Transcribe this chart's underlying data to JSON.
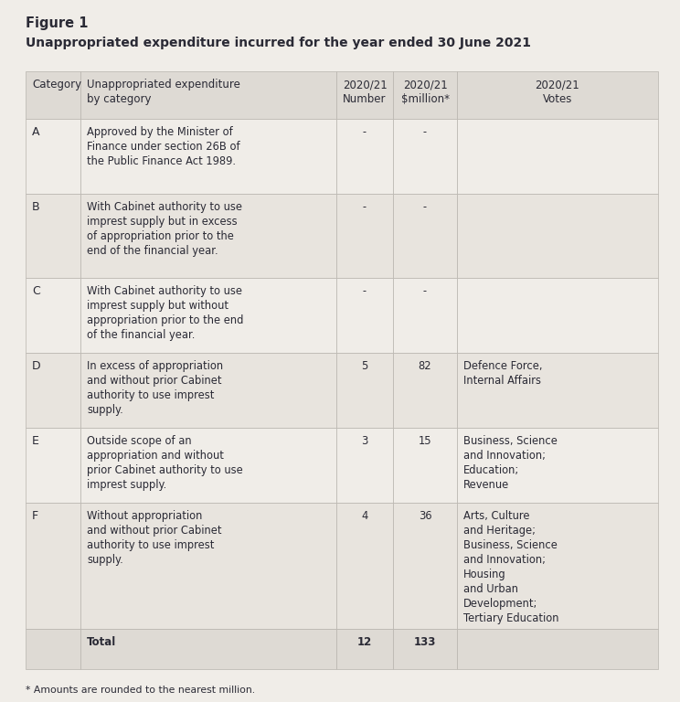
{
  "figure_label": "Figure 1",
  "title": "Unappropriated expenditure incurred for the year ended 30 June 2021",
  "footnote": "* Amounts are rounded to the nearest million.",
  "bg_color": "#f0ede8",
  "header_bg": "#dedad4",
  "row_bg_light": "#f0ede8",
  "row_bg_dark": "#e8e4de",
  "border_color": "#b8b4ae",
  "text_color": "#2a2a35",
  "rows": [
    {
      "cat": "A",
      "desc": "Approved by the Minister of\nFinance under section 26B of\nthe Public Finance Act 1989.",
      "num": "-",
      "mil": "-",
      "votes": ""
    },
    {
      "cat": "B",
      "desc": "With Cabinet authority to use\nimprest supply but in excess\nof appropriation prior to the\nend of the financial year.",
      "num": "-",
      "mil": "-",
      "votes": ""
    },
    {
      "cat": "C",
      "desc": "With Cabinet authority to use\nimprest supply but without\nappropriation prior to the end\nof the financial year.",
      "num": "-",
      "mil": "-",
      "votes": ""
    },
    {
      "cat": "D",
      "desc": "In excess of appropriation\nand without prior Cabinet\nauthority to use imprest\nsupply.",
      "num": "5",
      "mil": "82",
      "votes": "Defence Force,\nInternal Affairs"
    },
    {
      "cat": "E",
      "desc": "Outside scope of an\nappropriation and without\nprior Cabinet authority to use\nimprest supply.",
      "num": "3",
      "mil": "15",
      "votes": "Business, Science\nand Innovation;\nEducation;\nRevenue"
    },
    {
      "cat": "F",
      "desc": "Without appropriation\nand without prior Cabinet\nauthority to use imprest\nsupply.",
      "num": "4",
      "mil": "36",
      "votes": "Arts, Culture\nand Heritage;\nBusiness, Science\nand Innovation;\nHousing\nand Urban\nDevelopment;\nTertiary Education"
    }
  ],
  "total": {
    "desc": "Total",
    "num": "12",
    "mil": "133"
  }
}
